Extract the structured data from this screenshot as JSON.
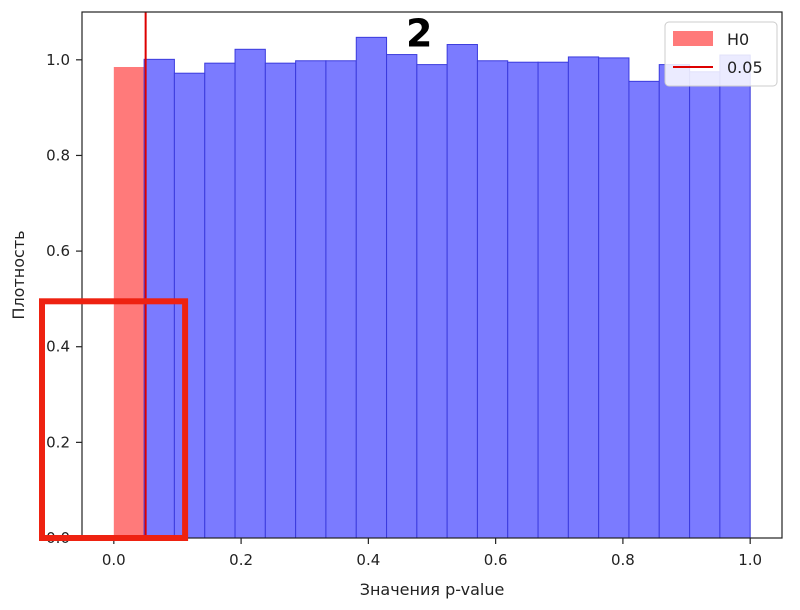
{
  "chart_data": {
    "type": "bar",
    "title": "",
    "xlabel": "Значения p-value",
    "ylabel": "Плотность",
    "xlim": [
      -0.05,
      1.05
    ],
    "ylim": [
      0,
      1.1
    ],
    "xticks": [
      "0.0",
      "0.2",
      "0.4",
      "0.6",
      "0.8",
      "1.0"
    ],
    "yticks": [
      "0.0",
      "0.2",
      "0.4",
      "0.6",
      "0.8",
      "1.0"
    ],
    "grid": false,
    "legend_position": "top-right",
    "bin_width": 0.0476,
    "series": [
      {
        "name": "H0",
        "color": "#ff6b6b",
        "bins": [
          {
            "start": 0.0,
            "end": 0.05,
            "value": 0.985
          }
        ]
      },
      {
        "name": "",
        "color": "#7b7bff",
        "bins": [
          {
            "start": 0.0476,
            "end": 0.0952,
            "value": 1.001
          },
          {
            "start": 0.0952,
            "end": 0.1429,
            "value": 0.972
          },
          {
            "start": 0.1429,
            "end": 0.1905,
            "value": 0.993
          },
          {
            "start": 0.1905,
            "end": 0.2381,
            "value": 1.022
          },
          {
            "start": 0.2381,
            "end": 0.2857,
            "value": 0.993
          },
          {
            "start": 0.2857,
            "end": 0.3333,
            "value": 0.998
          },
          {
            "start": 0.3333,
            "end": 0.381,
            "value": 0.998
          },
          {
            "start": 0.381,
            "end": 0.4286,
            "value": 1.047
          },
          {
            "start": 0.4286,
            "end": 0.4762,
            "value": 1.011
          },
          {
            "start": 0.4762,
            "end": 0.5238,
            "value": 0.99
          },
          {
            "start": 0.5238,
            "end": 0.5714,
            "value": 1.032
          },
          {
            "start": 0.5714,
            "end": 0.619,
            "value": 0.998
          },
          {
            "start": 0.619,
            "end": 0.6667,
            "value": 0.995
          },
          {
            "start": 0.6667,
            "end": 0.7143,
            "value": 0.995
          },
          {
            "start": 0.7143,
            "end": 0.7619,
            "value": 1.006
          },
          {
            "start": 0.7619,
            "end": 0.8095,
            "value": 1.004
          },
          {
            "start": 0.8095,
            "end": 0.8571,
            "value": 0.955
          },
          {
            "start": 0.8571,
            "end": 0.9048,
            "value": 0.99
          },
          {
            "start": 0.9048,
            "end": 0.9524,
            "value": 0.975
          },
          {
            "start": 0.9524,
            "end": 1.0,
            "value": 1.01
          }
        ]
      }
    ],
    "vline": {
      "x": 0.05,
      "label": "0.05",
      "color": "#dd0000"
    },
    "annotation": {
      "text": "2",
      "x": 0.48,
      "y": 1.07
    },
    "highlight_box": {
      "x0": -0.05,
      "x1": 0.112,
      "y0": 0.0,
      "y1": 0.495,
      "color": "#ee2211"
    }
  }
}
